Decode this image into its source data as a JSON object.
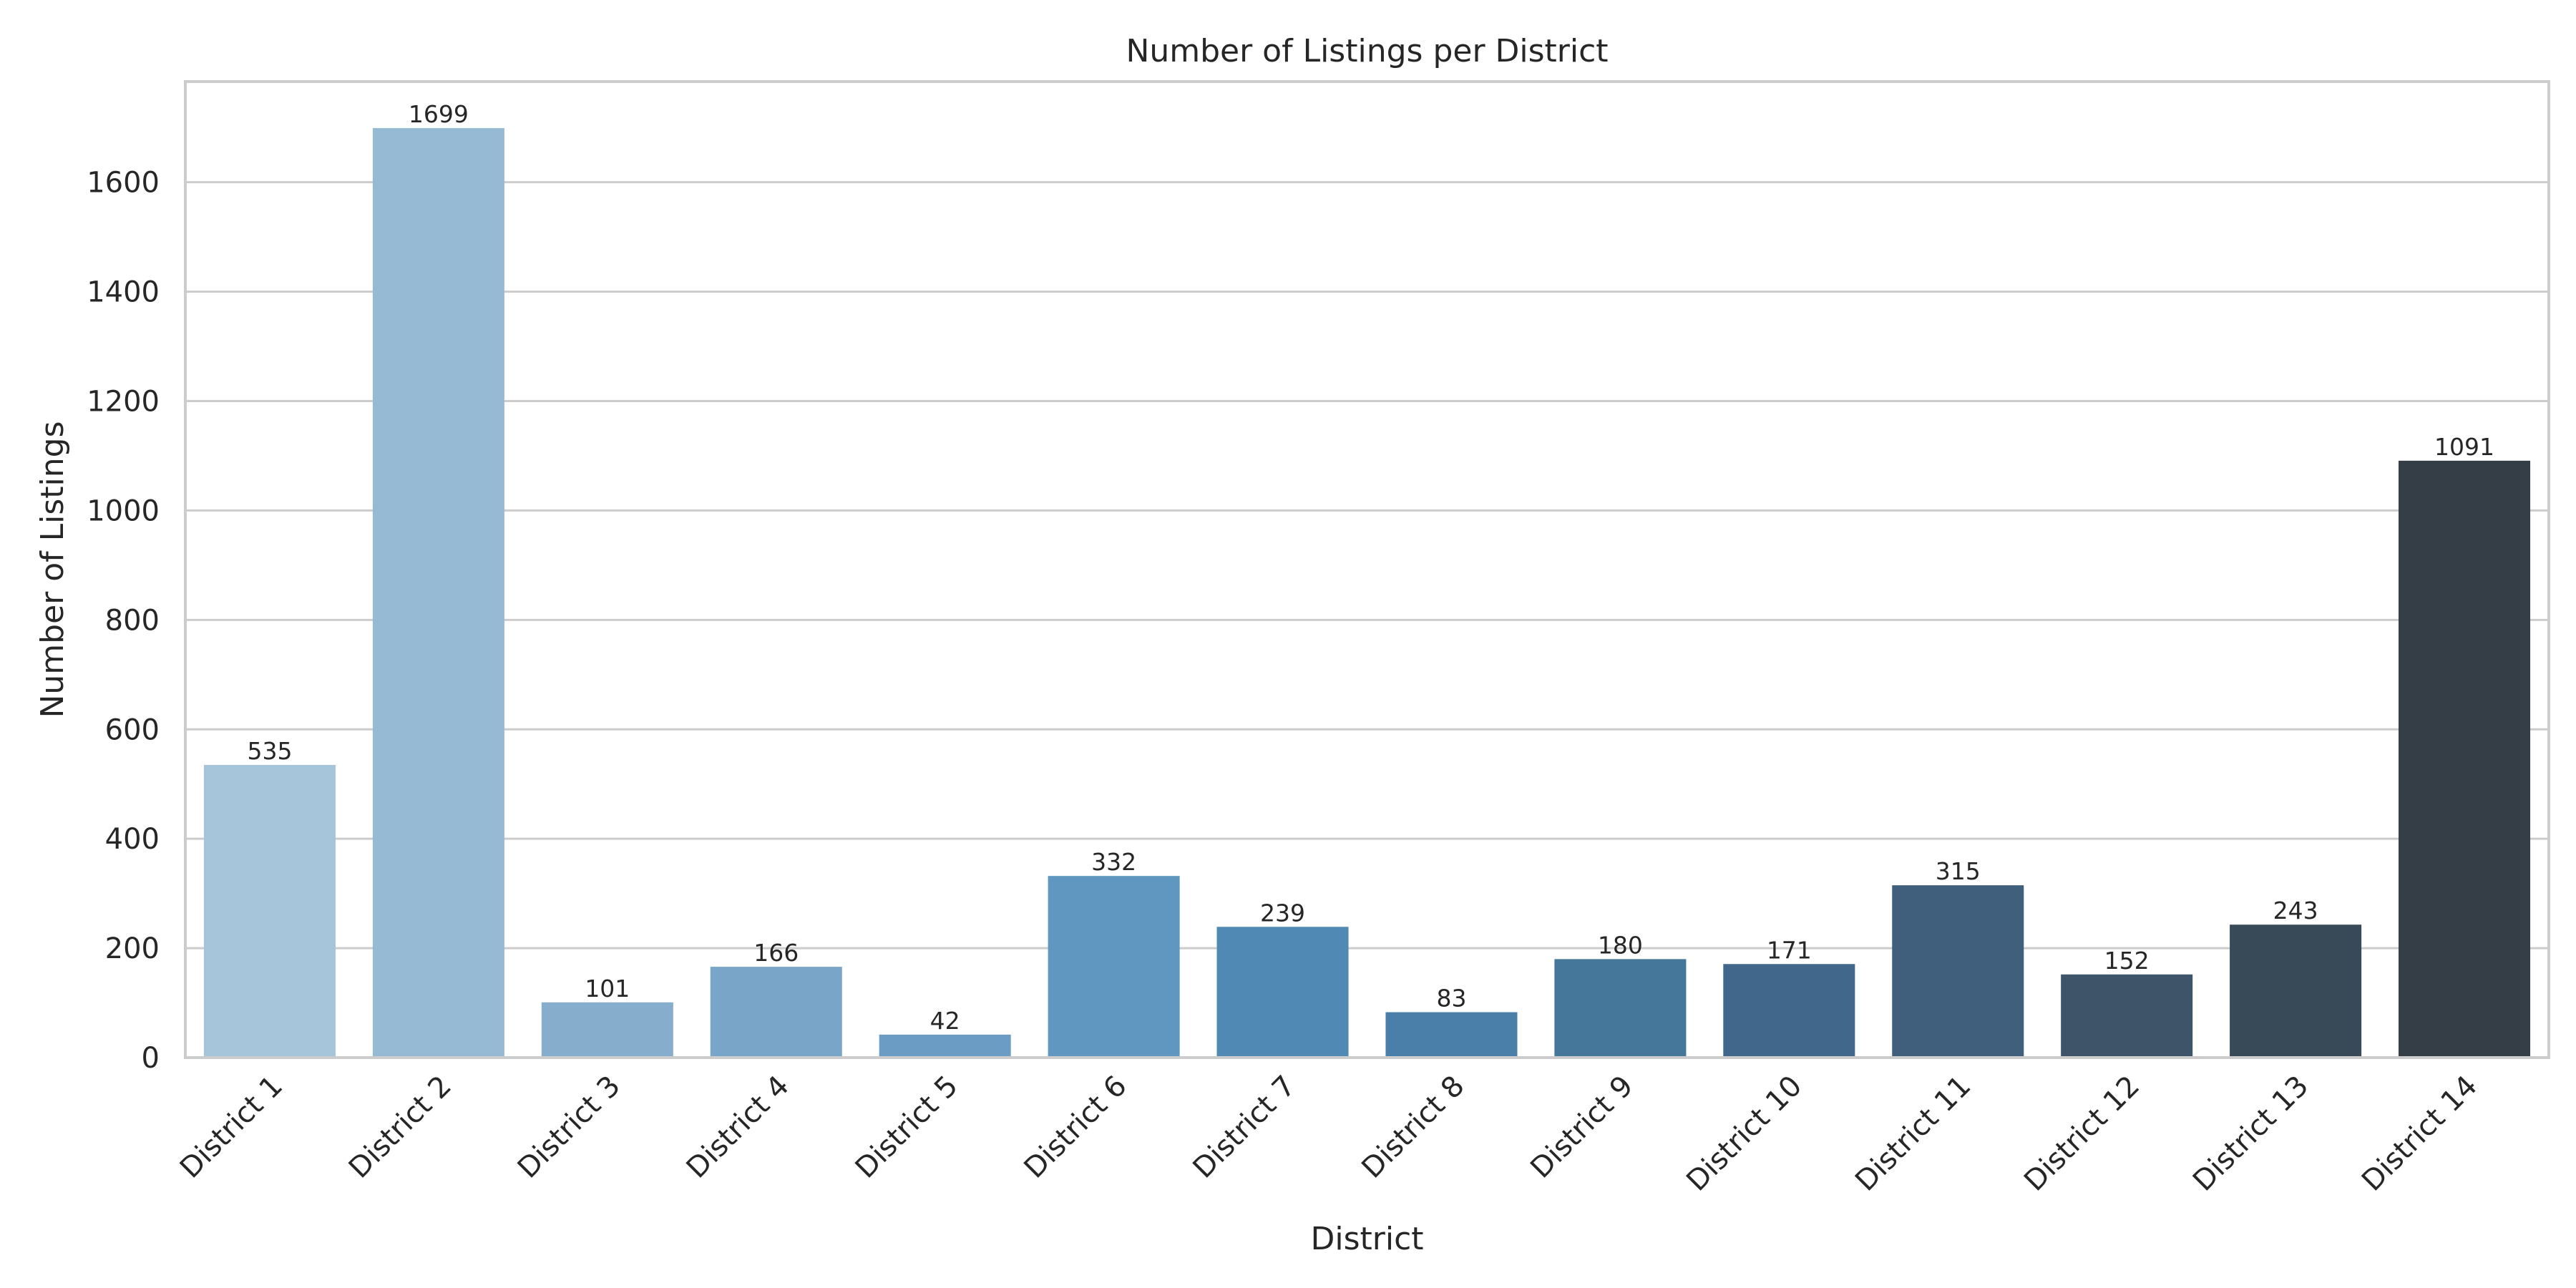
{
  "chart_data": {
    "type": "bar",
    "title": "Number of Listings per District",
    "xlabel": "District",
    "ylabel": "Number of Listings",
    "categories": [
      "District 1",
      "District 2",
      "District 3",
      "District 4",
      "District 5",
      "District 6",
      "District 7",
      "District 8",
      "District 9",
      "District 10",
      "District 11",
      "District 12",
      "District 13",
      "District 14"
    ],
    "values": [
      535,
      1699,
      101,
      166,
      42,
      332,
      239,
      83,
      180,
      171,
      315,
      152,
      243,
      1091
    ],
    "ylim": [
      0,
      1784
    ],
    "yticks": [
      0,
      200,
      400,
      600,
      800,
      1000,
      1200,
      1400,
      1600
    ],
    "grid": true,
    "legend": "none",
    "colors": [
      "#a6c5da",
      "#97bad4",
      "#86aecc",
      "#78a5c8",
      "#6a9cc4",
      "#5f97c0",
      "#5089b4",
      "#4a7fa9",
      "#44779a",
      "#41688a",
      "#405f7d",
      "#3d5469",
      "#384958",
      "#353d46"
    ],
    "gridColor": "#cccccc",
    "spineColor": "#cccccc"
  }
}
